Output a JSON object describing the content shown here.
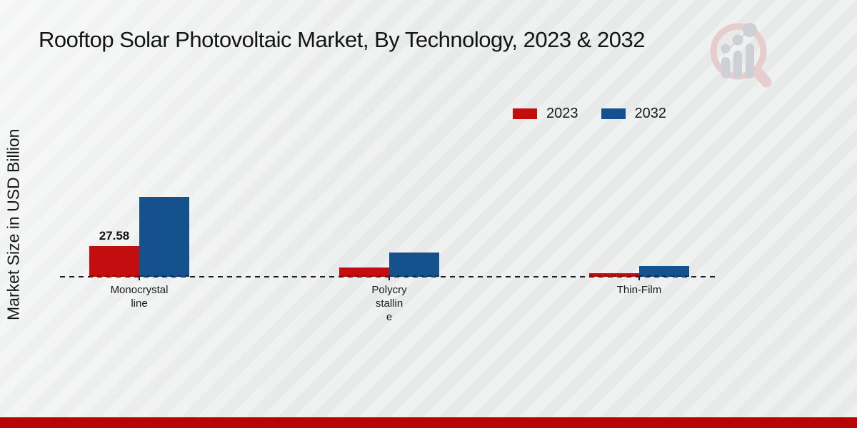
{
  "title": "Rooftop Solar Photovoltaic Market, By Technology, 2023 & 2032",
  "ylabel": "Market Size in USD Billion",
  "colors": {
    "background": "#ebecec",
    "footer_bar": "#b50505",
    "axis_line": "#1f1f1f",
    "series_2023": "#c40d0e",
    "series_2032": "#15518c",
    "logo_ring": "#e7cdcd",
    "logo_glyph": "#cdd0d5"
  },
  "legend": {
    "position": "top-right",
    "items": [
      {
        "label": "2023",
        "color": "#c40d0e"
      },
      {
        "label": "2032",
        "color": "#15518c"
      }
    ]
  },
  "chart_data": {
    "type": "bar",
    "title": "Rooftop Solar Photovoltaic Market, By Technology, 2023 & 2032",
    "xlabel": "",
    "ylabel": "Market Size in USD Billion",
    "units": "USD Billion",
    "categories": [
      "Monocrystalline",
      "Polycrystalline",
      "Thin-Film"
    ],
    "category_display": [
      "Monocrystal\nline",
      "Polycry\nstallin\ne",
      "Thin-Film"
    ],
    "series": [
      {
        "name": "2023",
        "color": "#c40d0e",
        "edge_color": "#8a0a0a",
        "values": [
          27.58,
          8.3,
          3.2
        ],
        "value_labels": [
          "27.58",
          "",
          ""
        ]
      },
      {
        "name": "2032",
        "color": "#15518c",
        "edge_color": "#0c3258",
        "values": [
          72.0,
          21.8,
          9.6
        ],
        "value_labels": [
          "",
          "",
          ""
        ]
      }
    ],
    "grid": false,
    "y_axis_ticks_visible": false,
    "baseline_style": "dashed",
    "legend_position": "top-right"
  },
  "logo": {
    "name": "magnifier-bar-chart-logo"
  }
}
